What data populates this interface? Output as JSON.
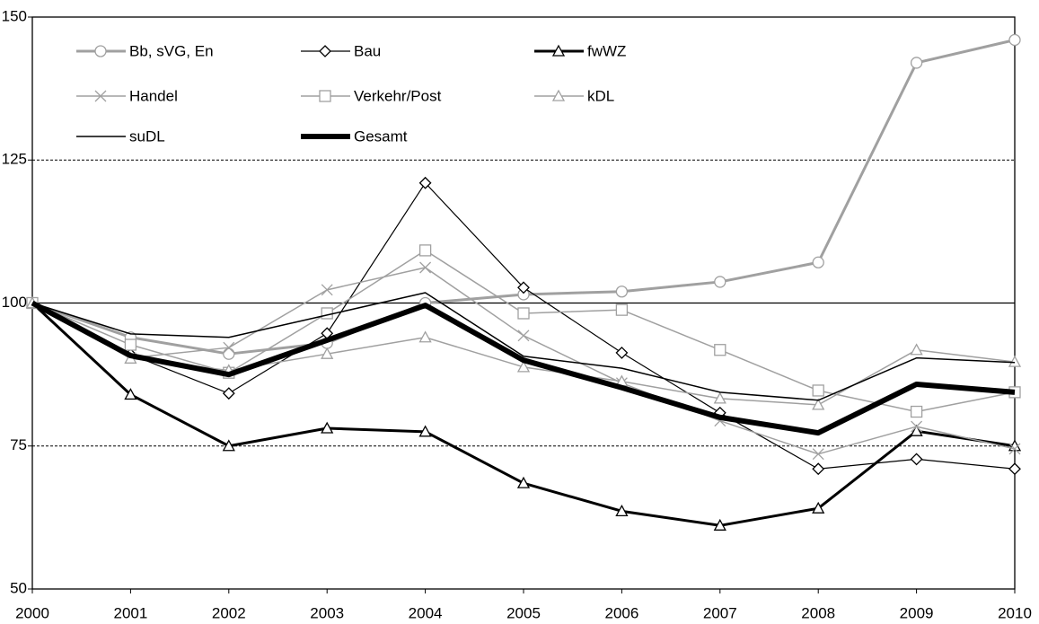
{
  "chart_data": {
    "type": "line",
    "x": [
      2000,
      2001,
      2002,
      2003,
      2004,
      2005,
      2006,
      2007,
      2008,
      2009,
      2010
    ],
    "xlim": [
      2000,
      2010
    ],
    "xticks": [
      2000,
      2001,
      2002,
      2003,
      2004,
      2005,
      2006,
      2007,
      2008,
      2009,
      2010
    ],
    "ylim": [
      50,
      150
    ],
    "yticks": [
      50,
      75,
      100,
      125,
      150
    ],
    "grid": true,
    "reference_line": 100,
    "legend": "top-left",
    "series": [
      {
        "name": "Bb, sVG, En",
        "color": "#a0a0a0",
        "line_width": 3,
        "marker": "circle",
        "values": [
          100,
          94,
          91.1,
          93,
          100,
          101.5,
          102,
          103.7,
          107.1,
          142,
          146
        ]
      },
      {
        "name": "Bau",
        "color": "#000000",
        "line_width": 1.2,
        "marker": "diamond",
        "values": [
          100,
          91,
          84.2,
          94.7,
          121,
          102.7,
          91.3,
          80.8,
          71,
          72.7,
          71
        ]
      },
      {
        "name": "fwWZ",
        "color": "#000000",
        "line_width": 3,
        "marker": "triangle",
        "values": [
          100,
          84,
          75,
          78.1,
          77.5,
          68.5,
          63.6,
          61.1,
          64.1,
          77.6,
          75
        ]
      },
      {
        "name": "Handel",
        "color": "#a0a0a0",
        "line_width": 1.5,
        "marker": "x",
        "values": [
          100,
          90.4,
          92.2,
          102.3,
          106.2,
          94.3,
          86,
          79.4,
          73.6,
          78.4,
          74.5
        ]
      },
      {
        "name": "Verkehr/Post",
        "color": "#a0a0a0",
        "line_width": 1.5,
        "marker": "square",
        "values": [
          100,
          92.7,
          87.8,
          98.2,
          109.2,
          98.2,
          98.8,
          91.8,
          84.7,
          81,
          84.4
        ]
      },
      {
        "name": "kDL",
        "color": "#a0a0a0",
        "line_width": 1.5,
        "marker": "triangle",
        "values": [
          100,
          90.3,
          88.2,
          91.1,
          94,
          88.8,
          86.3,
          83.3,
          82.2,
          91.8,
          89.7
        ]
      },
      {
        "name": "suDL",
        "color": "#000000",
        "line_width": 1.5,
        "marker": "none",
        "values": [
          100,
          94.6,
          94,
          97.9,
          101.8,
          90.7,
          88.6,
          84.4,
          83,
          90.4,
          89.6
        ]
      },
      {
        "name": "Gesamt",
        "color": "#000000",
        "line_width": 6,
        "marker": "none",
        "values": [
          100,
          90.8,
          87.5,
          93.5,
          99.6,
          90,
          85.2,
          80,
          77.3,
          85.8,
          84.4
        ]
      }
    ]
  }
}
